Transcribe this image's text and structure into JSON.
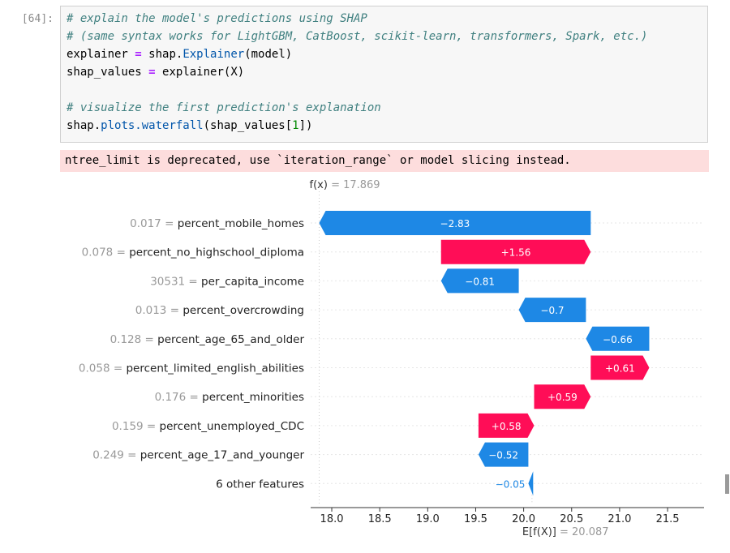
{
  "cell": {
    "prompt": "[64]:",
    "code": {
      "comment1": "# explain the model's predictions using SHAP",
      "comment2": "# (same syntax works for LightGBM, CatBoost, scikit-learn, transformers, Spark, etc.)",
      "line3_var": "explainer",
      "line3_eq": "=",
      "line3_obj": "shap.",
      "line3_attr": "Explainer",
      "line3_arg": "(model)",
      "line4_var": "shap_values",
      "line4_eq": "=",
      "line4_rhs": "explainer(X)",
      "comment5": "# visualize the first prediction's explanation",
      "line6_obj": "shap.",
      "line6_attr": "plots.waterfall",
      "line6_arg_open": "(shap_values[",
      "line6_idx": "1",
      "line6_arg_close": "])"
    }
  },
  "output": {
    "stderr": "ntree_limit is deprecated, use `iteration_range` or model slicing instead."
  },
  "colors": {
    "positive": "#ff0d57",
    "negative": "#1e88e5",
    "label_gray": "#999999"
  },
  "chart_data": {
    "type": "waterfall",
    "fx_label": "f(x)",
    "fx_value": "= 17.869",
    "fx": 17.869,
    "base_label": "E[f(X)]",
    "base_value_text": "= 20.087",
    "base_value": 20.087,
    "xlim": [
      17.78,
      21.88
    ],
    "xticks": [
      18.0,
      18.5,
      19.0,
      19.5,
      20.0,
      20.5,
      21.0,
      21.5
    ],
    "xtick_labels": [
      "18.0",
      "18.5",
      "19.0",
      "19.5",
      "20.0",
      "20.5",
      "21.0",
      "21.5"
    ],
    "features": [
      {
        "value": "0.017",
        "eq": "=",
        "name": "percent_mobile_homes",
        "shap": -2.83,
        "label": "−2.83"
      },
      {
        "value": "0.078",
        "eq": "=",
        "name": "percent_no_highschool_diploma",
        "shap": 1.56,
        "label": "+1.56"
      },
      {
        "value": "30531",
        "eq": "=",
        "name": "per_capita_income",
        "shap": -0.81,
        "label": "−0.81"
      },
      {
        "value": "0.013",
        "eq": "=",
        "name": "percent_overcrowding",
        "shap": -0.7,
        "label": "−0.7"
      },
      {
        "value": "0.128",
        "eq": "=",
        "name": "percent_age_65_and_older",
        "shap": -0.66,
        "label": "−0.66"
      },
      {
        "value": "0.058",
        "eq": "=",
        "name": "percent_limited_english_abilities",
        "shap": 0.61,
        "label": "+0.61"
      },
      {
        "value": "0.176",
        "eq": "=",
        "name": "percent_minorities",
        "shap": 0.59,
        "label": "+0.59"
      },
      {
        "value": "0.159",
        "eq": "=",
        "name": "percent_unemployed_CDC",
        "shap": 0.58,
        "label": "+0.58"
      },
      {
        "value": "0.249",
        "eq": "=",
        "name": "percent_age_17_and_younger",
        "shap": -0.52,
        "label": "−0.52"
      },
      {
        "value": "",
        "eq": "",
        "name": "6 other features",
        "shap": -0.05,
        "label": "−0.05"
      }
    ]
  }
}
